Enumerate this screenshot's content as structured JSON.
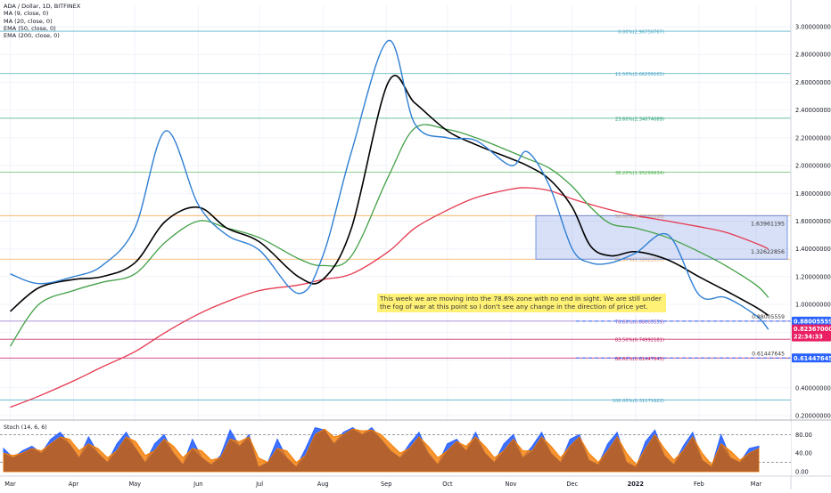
{
  "legend": [
    "ADA / Dollar, 1D, BITFINEX",
    "MA (9, close, 0)",
    "MA (20, close, 0)",
    "EMA (50, close, 0)",
    "EMA (200, close, 0)"
  ],
  "annotation": "This week we are moving into the 78.6% zone with no end in sight. We are still under the fog of war at this point so I don't see any change in the direction of price yet.",
  "price_labels": {
    "current": "0.88005559",
    "last": "0.82367000",
    "countdown": "22:34:33",
    "low": "0.61447645"
  },
  "hline_labels": {
    "upper": "0.88005559",
    "lower": "0.61447645"
  },
  "box_labels": {
    "top": "1.63961195",
    "bottom": "1.32622856"
  },
  "fib_levels": [
    {
      "label": "0.00%(2.96750767)",
      "value": 2.9675,
      "color": "#41a3c2"
    },
    {
      "label": "11.50%(2.66209165)",
      "value": 2.6621,
      "color": "#41a3c2"
    },
    {
      "label": "23.60%(2.34074089)",
      "value": 2.3407,
      "color": "#1b9b6f"
    },
    {
      "label": "38.20%(1.95299934)",
      "value": 1.953,
      "color": "#4caf50"
    },
    {
      "label": "50.00%(1.63961195)",
      "value": 1.6396,
      "color": "#f59f3b"
    },
    {
      "label": "61.80%(1.32622856)",
      "value": 1.3262,
      "color": "#f59f3b"
    },
    {
      "label": "78.60%(0.88005559)",
      "value": 0.8801,
      "color": "#7e57c2"
    },
    {
      "label": "83.50%(0.74992181)",
      "value": 0.7499,
      "color": "#c2185b"
    },
    {
      "label": "88.60%(0.61447645)",
      "value": 0.6145,
      "color": "#c2185b"
    },
    {
      "label": "100.00%(0.31171622)",
      "value": 0.3117,
      "color": "#41a3c2"
    }
  ],
  "colors": {
    "price": "#2f7fd3",
    "ma9": "#3c8ee0",
    "ma20": "#000000",
    "ema50": "#43a047",
    "ema200": "#e53950",
    "box": "#8fa7e8",
    "stoch_k": "#2962ff",
    "stoch_d": "#f57c00",
    "last_price_bg": "#e91e63",
    "hline_bg": "#2962ff"
  },
  "chart_data": {
    "type": "line",
    "y_axis_ticks": [
      "3.00000000",
      "2.80000000",
      "2.60000000",
      "2.40000000",
      "2.20000000",
      "2.00000000",
      "1.80000000",
      "1.60000000",
      "1.40000000",
      "1.20000000",
      "1.00000000",
      "0.80000000",
      "0.60000000",
      "0.40000000",
      "0.20000000"
    ],
    "ylim": [
      0.2,
      3.0
    ],
    "x_tick_labels": [
      "Mar",
      "Apr",
      "May",
      "Jun",
      "Jul",
      "Aug",
      "Sep",
      "Oct",
      "Nov",
      "Dec",
      "2022",
      "Feb",
      "Mar"
    ],
    "x": [
      "2021-03-01",
      "2021-03-15",
      "2021-04-01",
      "2021-04-15",
      "2021-05-01",
      "2021-05-16",
      "2021-06-01",
      "2021-06-15",
      "2021-07-01",
      "2021-07-20",
      "2021-08-01",
      "2021-08-15",
      "2021-09-02",
      "2021-09-15",
      "2021-10-01",
      "2021-10-15",
      "2021-11-01",
      "2021-11-09",
      "2021-11-20",
      "2021-12-01",
      "2021-12-10",
      "2021-12-20",
      "2022-01-01",
      "2022-01-17",
      "2022-02-01",
      "2022-02-14",
      "2022-03-01",
      "2022-03-07"
    ],
    "series": [
      {
        "name": "ADA / Dollar",
        "values": [
          1.22,
          1.15,
          1.2,
          1.28,
          1.55,
          2.25,
          1.72,
          1.5,
          1.39,
          1.08,
          1.35,
          2.1,
          2.9,
          2.3,
          2.2,
          2.18,
          2.0,
          2.1,
          1.85,
          1.4,
          1.3,
          1.3,
          1.37,
          1.5,
          1.07,
          1.05,
          0.92,
          0.82
        ]
      },
      {
        "name": "MA (20, close, 0)",
        "values": [
          0.95,
          1.12,
          1.18,
          1.2,
          1.3,
          1.6,
          1.7,
          1.55,
          1.45,
          1.2,
          1.18,
          1.55,
          2.6,
          2.45,
          2.25,
          2.15,
          2.05,
          2.0,
          1.9,
          1.7,
          1.42,
          1.35,
          1.38,
          1.32,
          1.2,
          1.1,
          0.98,
          0.92
        ]
      },
      {
        "name": "EMA (50, close, 0)",
        "values": [
          0.7,
          1.0,
          1.1,
          1.16,
          1.22,
          1.45,
          1.6,
          1.55,
          1.48,
          1.33,
          1.28,
          1.35,
          1.92,
          2.27,
          2.26,
          2.2,
          2.1,
          2.05,
          1.98,
          1.85,
          1.7,
          1.58,
          1.55,
          1.48,
          1.38,
          1.28,
          1.14,
          1.05
        ]
      },
      {
        "name": "EMA (200, close, 0)",
        "values": [
          0.26,
          0.34,
          0.45,
          0.55,
          0.66,
          0.8,
          0.93,
          1.02,
          1.1,
          1.14,
          1.18,
          1.22,
          1.38,
          1.55,
          1.68,
          1.77,
          1.83,
          1.84,
          1.82,
          1.76,
          1.72,
          1.68,
          1.64,
          1.6,
          1.56,
          1.52,
          1.44,
          1.4
        ]
      }
    ]
  },
  "stoch": {
    "title": "Stoch (14, 6, 6)",
    "ticks": [
      "80.00",
      "40.00",
      "0.00"
    ],
    "ylim": [
      0,
      100
    ],
    "k": [
      50,
      30,
      45,
      55,
      40,
      70,
      85,
      60,
      30,
      75,
      40,
      20,
      60,
      85,
      50,
      20,
      60,
      80,
      40,
      15,
      70,
      30,
      15,
      35,
      90,
      55,
      80,
      10,
      20,
      70,
      30,
      10,
      50,
      95,
      90,
      60,
      85,
      95,
      80,
      95,
      70,
      45,
      30,
      60,
      85,
      40,
      15,
      60,
      70,
      45,
      85,
      40,
      20,
      60,
      80,
      30,
      55,
      85,
      40,
      20,
      70,
      80,
      25,
      15,
      60,
      85,
      20,
      10,
      65,
      90,
      35,
      15,
      55,
      85,
      25,
      10,
      80,
      30,
      20,
      50,
      55
    ],
    "d": [
      40,
      35,
      40,
      50,
      45,
      60,
      75,
      70,
      45,
      60,
      50,
      30,
      45,
      75,
      65,
      35,
      45,
      70,
      55,
      30,
      50,
      45,
      25,
      30,
      70,
      65,
      75,
      30,
      20,
      50,
      45,
      20,
      35,
      80,
      92,
      75,
      80,
      92,
      88,
      90,
      80,
      60,
      40,
      50,
      75,
      55,
      30,
      45,
      65,
      55,
      75,
      55,
      30,
      45,
      70,
      45,
      45,
      75,
      55,
      30,
      55,
      75,
      40,
      20,
      45,
      75,
      40,
      15,
      50,
      80,
      50,
      25,
      45,
      75,
      40,
      15,
      60,
      45,
      25,
      40,
      50
    ]
  }
}
